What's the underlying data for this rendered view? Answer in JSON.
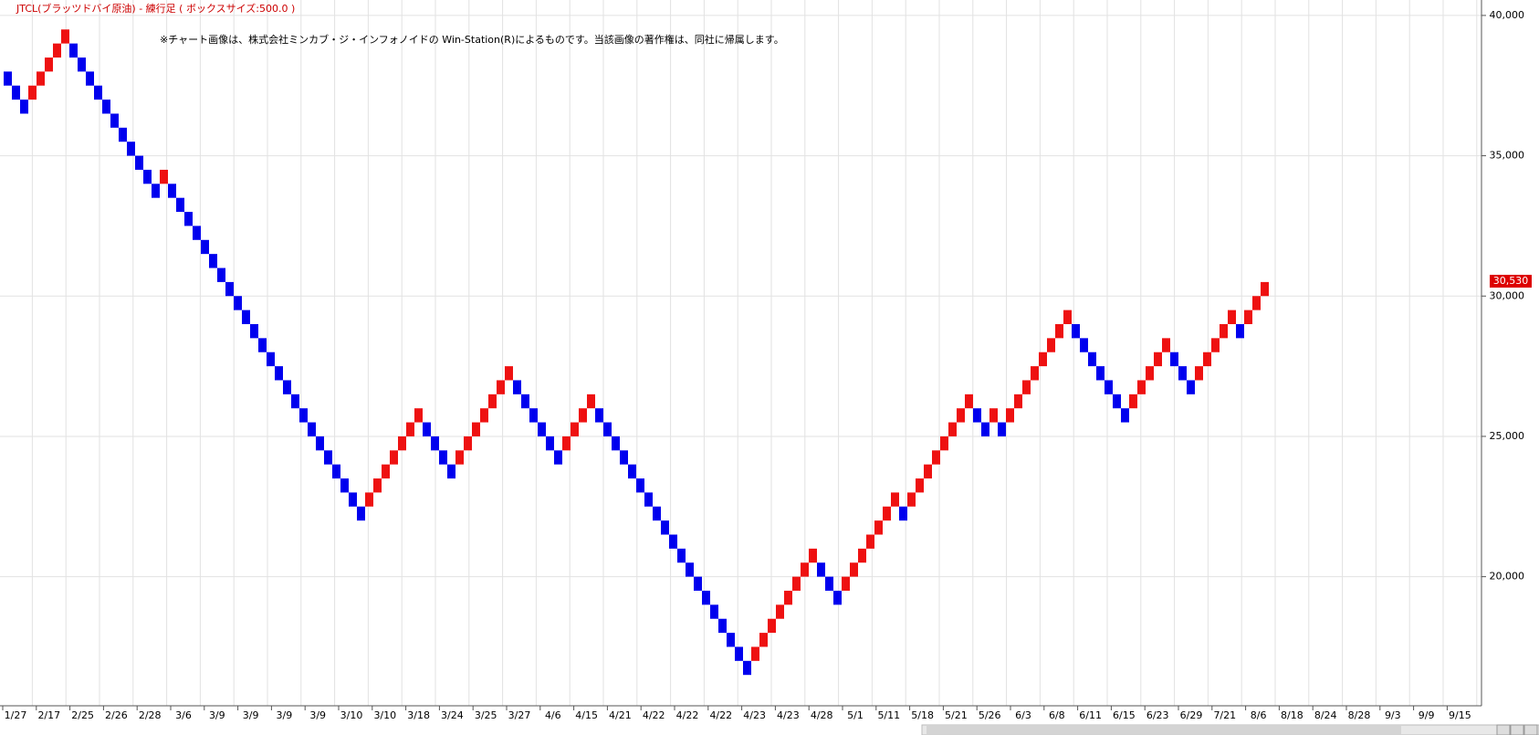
{
  "chart_data": {
    "type": "renko",
    "title": "JTCL(ブラッツドバイ原油) - 練行足 ( ボックスサイズ:500.0 )",
    "note": "※チャート画像は、株式会社ミンカブ・ジ・インフォノイドの Win-Station(R)によるものです。当該画像の著作権は、同社に帰属します。",
    "categories": [
      "1/27",
      "2/17",
      "2/25",
      "2/26",
      "2/28",
      "3/6",
      "3/9",
      "3/9",
      "3/9",
      "3/9",
      "3/10",
      "3/10",
      "3/18",
      "3/24",
      "3/25",
      "3/27",
      "4/6",
      "4/15",
      "4/21",
      "4/22",
      "4/22",
      "4/22",
      "4/23",
      "4/23",
      "4/28",
      "5/1",
      "5/11",
      "5/18",
      "5/21",
      "5/26",
      "6/3",
      "6/8",
      "6/11",
      "6/15",
      "6/23",
      "6/29",
      "7/21",
      "8/6",
      "8/18",
      "8/24",
      "8/28",
      "9/3",
      "9/9",
      "9/15"
    ],
    "open": [
      38000,
      37500,
      37000,
      37000,
      37500,
      38000,
      38500,
      39000,
      39000,
      38500,
      38000,
      37500,
      37000,
      36500,
      36000,
      35500,
      35000,
      34500,
      34000,
      34000,
      34000,
      33500,
      33000,
      32500,
      32000,
      31500,
      31000,
      30500,
      30000,
      29500,
      29000,
      28500,
      28000,
      27500,
      27000,
      26500,
      26000,
      25500,
      25000,
      24500,
      24000,
      23500,
      23000,
      22500,
      22500,
      23000,
      23500,
      24000,
      24500,
      25000,
      25500,
      25500,
      25000,
      24500,
      24000,
      24000,
      24500,
      25000,
      25500,
      26000,
      26500,
      27000,
      27000,
      26500,
      26000,
      25500,
      25000,
      24500,
      24500,
      25000,
      25500,
      26000,
      26000,
      25500,
      25000,
      24500,
      24000,
      23500,
      23000,
      22500,
      22000,
      21500,
      21000,
      20500,
      20000,
      19500,
      19000,
      18500,
      18000,
      17500,
      17000,
      17000,
      17500,
      18000,
      18500,
      19000,
      19500,
      20000,
      20500,
      20500,
      20000,
      19500,
      19500,
      20000,
      20500,
      21000,
      21500,
      22000,
      22500,
      22500,
      22500,
      23000,
      23500,
      24000,
      24500,
      25000,
      25500,
      26000,
      26000,
      25500,
      25500,
      25500,
      25500,
      26000,
      26500,
      27000,
      27500,
      28000,
      28500,
      29000,
      29000,
      28500,
      28000,
      27500,
      27000,
      26500,
      26000,
      26000,
      26500,
      27000,
      27500,
      28000,
      28000,
      27500,
      27000,
      27000,
      27500,
      28000,
      28500,
      29000,
      29000,
      29000,
      29500,
      30000
    ],
    "close": [
      37500,
      37000,
      36500,
      37500,
      38000,
      38500,
      39000,
      39500,
      38500,
      38000,
      37500,
      37000,
      36500,
      36000,
      35500,
      35000,
      34500,
      34000,
      33500,
      34500,
      33500,
      33000,
      32500,
      32000,
      31500,
      31000,
      30500,
      30000,
      29500,
      29000,
      28500,
      28000,
      27500,
      27000,
      26500,
      26000,
      25500,
      25000,
      24500,
      24000,
      23500,
      23000,
      22500,
      22000,
      23000,
      23500,
      24000,
      24500,
      25000,
      25500,
      26000,
      25000,
      24500,
      24000,
      23500,
      24500,
      25000,
      25500,
      26000,
      26500,
      27000,
      27500,
      26500,
      26000,
      25500,
      25000,
      24500,
      24000,
      25000,
      25500,
      26000,
      26500,
      25500,
      25000,
      24500,
      24000,
      23500,
      23000,
      22500,
      22000,
      21500,
      21000,
      20500,
      20000,
      19500,
      19000,
      18500,
      18000,
      17500,
      17000,
      16500,
      17500,
      18000,
      18500,
      19000,
      19500,
      20000,
      20500,
      21000,
      20000,
      19500,
      19000,
      20000,
      20500,
      21000,
      21500,
      22000,
      22500,
      23000,
      22000,
      23000,
      23500,
      24000,
      24500,
      25000,
      25500,
      26000,
      26500,
      25500,
      25000,
      26000,
      25000,
      26000,
      26500,
      27000,
      27500,
      28000,
      28500,
      29000,
      29500,
      28500,
      28000,
      27500,
      27000,
      26500,
      26000,
      25500,
      26500,
      27000,
      27500,
      28000,
      28500,
      27500,
      27000,
      26500,
      27500,
      28000,
      28500,
      29000,
      29500,
      28500,
      29500,
      30000,
      30500
    ],
    "up_color": "#ee1111",
    "down_color": "#0000ee",
    "ylim": [
      15400,
      40550
    ],
    "yticks": [
      {
        "value": 20000,
        "label": "20,000"
      },
      {
        "value": 25000,
        "label": "25,000"
      },
      {
        "value": 30000,
        "label": "30,000"
      },
      {
        "value": 35000,
        "label": "35,000"
      },
      {
        "value": 40000,
        "label": "40,000"
      }
    ],
    "grid": true,
    "last_price": {
      "value": 30530,
      "label": "30,530"
    }
  }
}
